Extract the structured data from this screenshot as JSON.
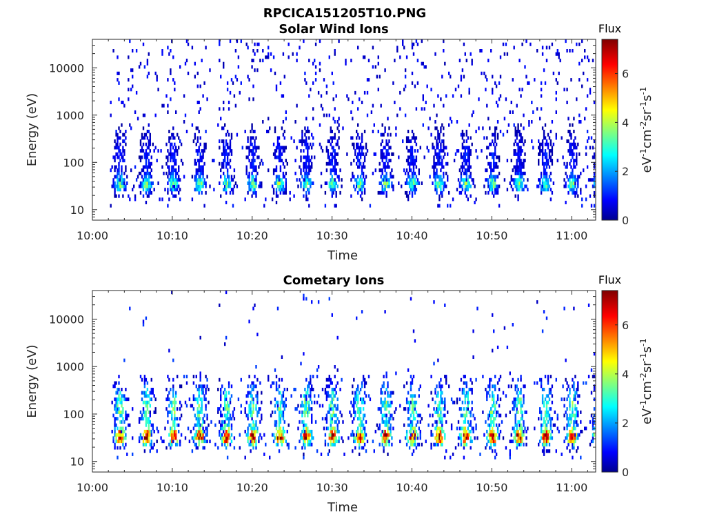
{
  "figure_title": "RPCICA151205T10.PNG",
  "chart_data": [
    {
      "type": "heatmap",
      "title": "Solar Wind Ions",
      "xlabel": "Time",
      "ylabel": "Energy (eV)",
      "x_ticks": [
        "10:00",
        "10:10",
        "10:20",
        "10:30",
        "10:40",
        "10:50",
        "11:00"
      ],
      "x_range_minutes": [
        0,
        63
      ],
      "y_scale": "log",
      "y_ticks": [
        10,
        100,
        1000,
        10000
      ],
      "y_tick_labels": [
        "10",
        "100",
        "1000",
        "10000"
      ],
      "ylim": [
        6,
        40000
      ],
      "colorbar": {
        "title": "Flux",
        "label": "eV-1cm-2sr-1s-1",
        "ticks": [
          0,
          2,
          4,
          6
        ],
        "range": [
          0,
          7.4
        ],
        "colormap": "jet"
      },
      "pattern": {
        "data_start_minute": 2.2,
        "data_end_minute": 62.8,
        "sweep_period_minutes": 3.33,
        "core_energy_eV": 32,
        "core_flux": 3.5,
        "spread_flux": 1.2,
        "background_flux": 0.8
      }
    },
    {
      "type": "heatmap",
      "title": "Cometary Ions",
      "xlabel": "Time",
      "ylabel": "Energy (eV)",
      "x_ticks": [
        "10:00",
        "10:10",
        "10:20",
        "10:30",
        "10:40",
        "10:50",
        "11:00"
      ],
      "x_range_minutes": [
        0,
        63
      ],
      "y_scale": "log",
      "y_ticks": [
        10,
        100,
        1000,
        10000
      ],
      "y_tick_labels": [
        "10",
        "100",
        "1000",
        "10000"
      ],
      "ylim": [
        6,
        40000
      ],
      "colorbar": {
        "title": "Flux",
        "label": "eV-1cm-2sr-1s-1",
        "ticks": [
          0,
          2,
          4,
          6
        ],
        "range": [
          0,
          7.4
        ],
        "colormap": "jet"
      },
      "pattern": {
        "data_start_minute": 2.2,
        "data_end_minute": 62.8,
        "sweep_period_minutes": 3.33,
        "core_energy_eV": 30,
        "core_flux": 6.3,
        "spread_flux": 3.8,
        "background_flux": 1.0
      }
    }
  ]
}
